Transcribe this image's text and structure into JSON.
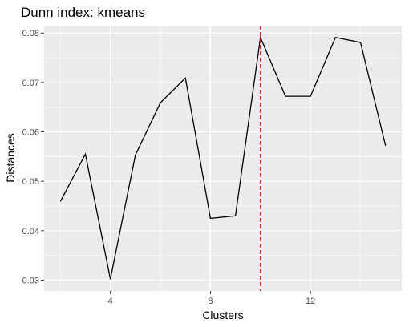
{
  "chart_data": {
    "type": "line",
    "title": "Dunn index: kmeans",
    "xlabel": "Clusters",
    "ylabel": "Distances",
    "x": [
      2,
      3,
      4,
      5,
      6,
      7,
      8,
      9,
      10,
      11,
      12,
      13,
      14,
      15
    ],
    "series": [
      {
        "values": [
          0.0459,
          0.0555,
          0.0302,
          0.0553,
          0.0659,
          0.0709,
          0.0425,
          0.043,
          0.0791,
          0.0672,
          0.0672,
          0.0791,
          0.0781,
          0.0572
        ]
      }
    ],
    "xlim": [
      1.35,
      15.65
    ],
    "ylim": [
      0.0278,
      0.0815
    ],
    "x_ticks": [
      4,
      8,
      12
    ],
    "x_minor_ticks": [
      2,
      6,
      10,
      14
    ],
    "y_ticks": [
      0.03,
      0.04,
      0.05,
      0.06,
      0.07,
      0.08
    ],
    "y_tick_labels": [
      "0.03",
      "0.04",
      "0.05",
      "0.06",
      "0.07",
      "0.08"
    ],
    "y_minor_ticks": [
      0.035,
      0.045,
      0.055,
      0.065,
      0.075
    ],
    "reference_line": {
      "orientation": "vertical",
      "x": 10,
      "style": "dashed",
      "color": "#ff0000"
    },
    "grid": true,
    "colors": {
      "panel": "#ebebeb",
      "grid": "#ffffff",
      "line": "#000000"
    }
  }
}
